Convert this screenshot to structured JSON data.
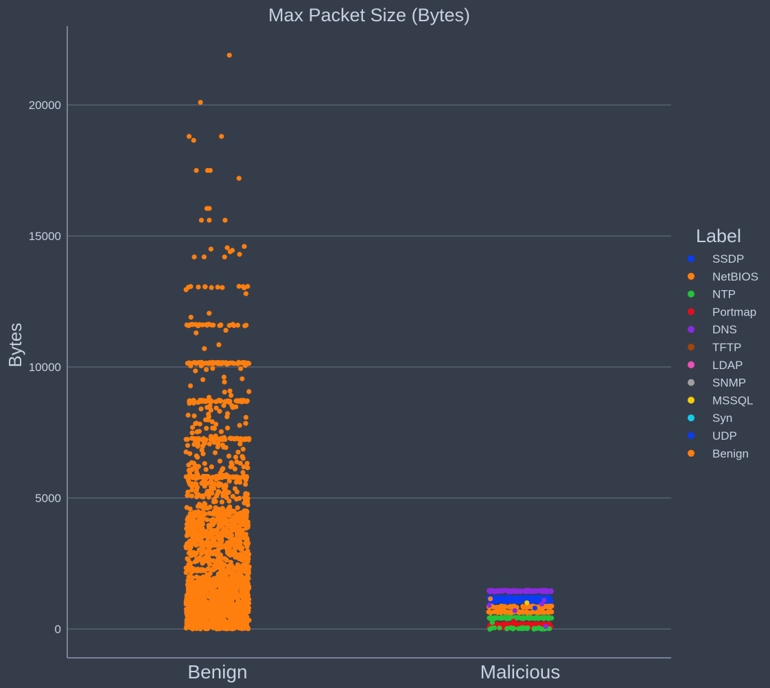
{
  "chart_data": {
    "type": "scatter",
    "style": "strip",
    "title": "Max Packet Size (Bytes)",
    "xlabel": "",
    "ylabel": "Bytes",
    "categories": [
      "Benign",
      "Malicious"
    ],
    "ylim": [
      -1100,
      23000
    ],
    "yticks": [
      0,
      5000,
      10000,
      15000,
      20000
    ],
    "grid": true,
    "legend": {
      "title": "Label",
      "position": "right",
      "entries": [
        {
          "label": "SSDP",
          "color": "#0a3cf5"
        },
        {
          "label": "NetBIOS",
          "color": "#ff7f0e"
        },
        {
          "label": "NTP",
          "color": "#22c43a"
        },
        {
          "label": "Portmap",
          "color": "#e50d1c"
        },
        {
          "label": "DNS",
          "color": "#8a2be2"
        },
        {
          "label": "TFTP",
          "color": "#a0460a"
        },
        {
          "label": "LDAP",
          "color": "#ee4fb9"
        },
        {
          "label": "SNMP",
          "color": "#a0a0a0"
        },
        {
          "label": "MSSQL",
          "color": "#f5cc0a"
        },
        {
          "label": "Syn",
          "color": "#10cfe8"
        },
        {
          "label": "UDP",
          "color": "#0a3cf5"
        },
        {
          "label": "Benign",
          "color": "#ff7f0e"
        }
      ]
    },
    "series": [
      {
        "name": "Benign",
        "category": "Benign",
        "color": "#ff7f0e",
        "bands": [
          {
            "min": 0,
            "max": 2000,
            "count": 900
          },
          {
            "min": 2000,
            "max": 4500,
            "count": 500
          },
          {
            "min": 4500,
            "max": 5900,
            "count": 120
          },
          {
            "min": 5900,
            "max": 7200,
            "count": 60
          },
          {
            "min": 7300,
            "max": 8700,
            "count": 40
          },
          {
            "min": 8800,
            "max": 10200,
            "count": 15
          }
        ],
        "rows": [
          {
            "y": 5800,
            "count": 50
          },
          {
            "y": 7250,
            "count": 50
          },
          {
            "y": 8700,
            "count": 50
          },
          {
            "y": 10150,
            "count": 50
          },
          {
            "y": 11600,
            "count": 25
          },
          {
            "y": 13050,
            "count": 12
          }
        ],
        "outliers": [
          21900,
          20100,
          18800,
          18800,
          18650,
          17500,
          17500,
          17500,
          17200,
          16050,
          16050,
          15600,
          15600,
          15600,
          14600,
          14550,
          14500,
          14450,
          14400,
          14300,
          14200,
          14200,
          14200,
          12950,
          12800,
          12050,
          11900,
          11400,
          11300,
          10850,
          10700,
          9550,
          9850,
          9900,
          8200,
          8100
        ]
      },
      {
        "name": "Malicious",
        "category": "Malicious",
        "rows": [
          {
            "y": 1450,
            "count": 90,
            "color": "#8a2be2"
          },
          {
            "y": 1200,
            "count": 40,
            "color": "#0a3cf5"
          },
          {
            "y": 1050,
            "count": 50,
            "color": "#0a3cf5"
          },
          {
            "y": 850,
            "count": 60,
            "color": "#ff7f0e"
          },
          {
            "y": 650,
            "count": 60,
            "color": "#ff7f0e"
          },
          {
            "y": 420,
            "count": 90,
            "color": "#22c43a"
          },
          {
            "y": 180,
            "count": 70,
            "color": "#e50d1c"
          },
          {
            "y": 60,
            "count": 60,
            "color": "#e50d1c"
          },
          {
            "y": 20,
            "count": 30,
            "color": "#22c43a"
          }
        ],
        "scatter": [
          {
            "y": 1100,
            "color": "#8a2be2"
          },
          {
            "y": 950,
            "color": "#8a2be2"
          },
          {
            "y": 900,
            "color": "#8a2be2"
          },
          {
            "y": 800,
            "color": "#0a3cf5"
          },
          {
            "y": 700,
            "color": "#8a2be2"
          },
          {
            "y": 1000,
            "color": "#f5cc0a"
          },
          {
            "y": 300,
            "color": "#e50d1c"
          },
          {
            "y": 100,
            "color": "#8a2be2"
          },
          {
            "y": 250,
            "color": "#22c43a"
          },
          {
            "y": 1150,
            "color": "#ff7f0e"
          }
        ]
      }
    ]
  }
}
